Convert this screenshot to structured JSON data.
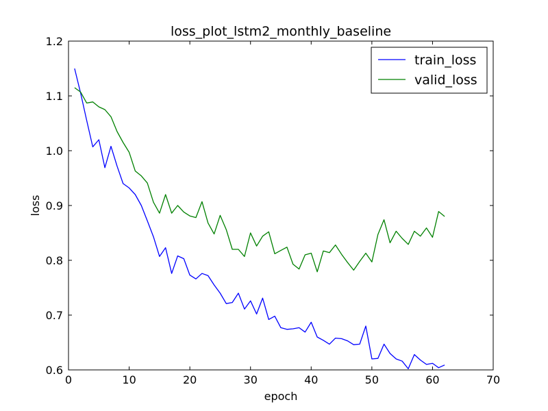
{
  "chart_data": {
    "type": "line",
    "title": "loss_plot_lstm2_monthly_baseline",
    "xlabel": "epoch",
    "ylabel": "loss",
    "xlim": [
      0,
      70
    ],
    "ylim": [
      0.6,
      1.2
    ],
    "xticks": [
      "0",
      "10",
      "20",
      "30",
      "40",
      "50",
      "60",
      "70"
    ],
    "yticks": [
      "0.6",
      "0.7",
      "0.8",
      "0.9",
      "1.0",
      "1.1",
      "1.2"
    ],
    "grid": false,
    "legend": "top-right",
    "x": [
      1,
      2,
      3,
      4,
      5,
      6,
      7,
      8,
      9,
      10,
      11,
      12,
      13,
      14,
      15,
      16,
      17,
      18,
      19,
      20,
      21,
      22,
      23,
      24,
      25,
      26,
      27,
      28,
      29,
      30,
      31,
      32,
      33,
      34,
      35,
      36,
      37,
      38,
      39,
      40,
      41,
      42,
      43,
      44,
      45,
      46,
      47,
      48,
      49,
      50,
      51,
      52,
      53,
      54,
      55,
      56,
      57,
      58,
      59,
      60,
      61,
      62
    ],
    "series": [
      {
        "name": "train_loss",
        "color": "#0000ff",
        "values": [
          1.15,
          1.105,
          1.055,
          1.007,
          1.02,
          0.969,
          1.008,
          0.972,
          0.94,
          0.932,
          0.92,
          0.9,
          0.872,
          0.843,
          0.807,
          0.823,
          0.776,
          0.808,
          0.803,
          0.773,
          0.766,
          0.776,
          0.772,
          0.755,
          0.74,
          0.721,
          0.723,
          0.74,
          0.711,
          0.726,
          0.702,
          0.731,
          0.692,
          0.698,
          0.677,
          0.674,
          0.675,
          0.677,
          0.669,
          0.687,
          0.66,
          0.654,
          0.647,
          0.658,
          0.657,
          0.653,
          0.646,
          0.647,
          0.68,
          0.62,
          0.621,
          0.647,
          0.63,
          0.62,
          0.616,
          0.602,
          0.628,
          0.618,
          0.61,
          0.612,
          0.604,
          0.609
        ]
      },
      {
        "name": "valid_loss",
        "color": "#008000",
        "values": [
          1.115,
          1.107,
          1.087,
          1.089,
          1.08,
          1.075,
          1.062,
          1.035,
          1.015,
          0.997,
          0.963,
          0.954,
          0.941,
          0.906,
          0.886,
          0.92,
          0.886,
          0.9,
          0.888,
          0.881,
          0.878,
          0.907,
          0.868,
          0.848,
          0.882,
          0.856,
          0.82,
          0.82,
          0.807,
          0.85,
          0.826,
          0.844,
          0.852,
          0.812,
          0.818,
          0.824,
          0.793,
          0.784,
          0.81,
          0.813,
          0.779,
          0.817,
          0.814,
          0.828,
          0.811,
          0.796,
          0.782,
          0.798,
          0.813,
          0.797,
          0.847,
          0.874,
          0.832,
          0.853,
          0.84,
          0.829,
          0.853,
          0.844,
          0.859,
          0.842,
          0.889,
          0.88
        ]
      }
    ]
  }
}
